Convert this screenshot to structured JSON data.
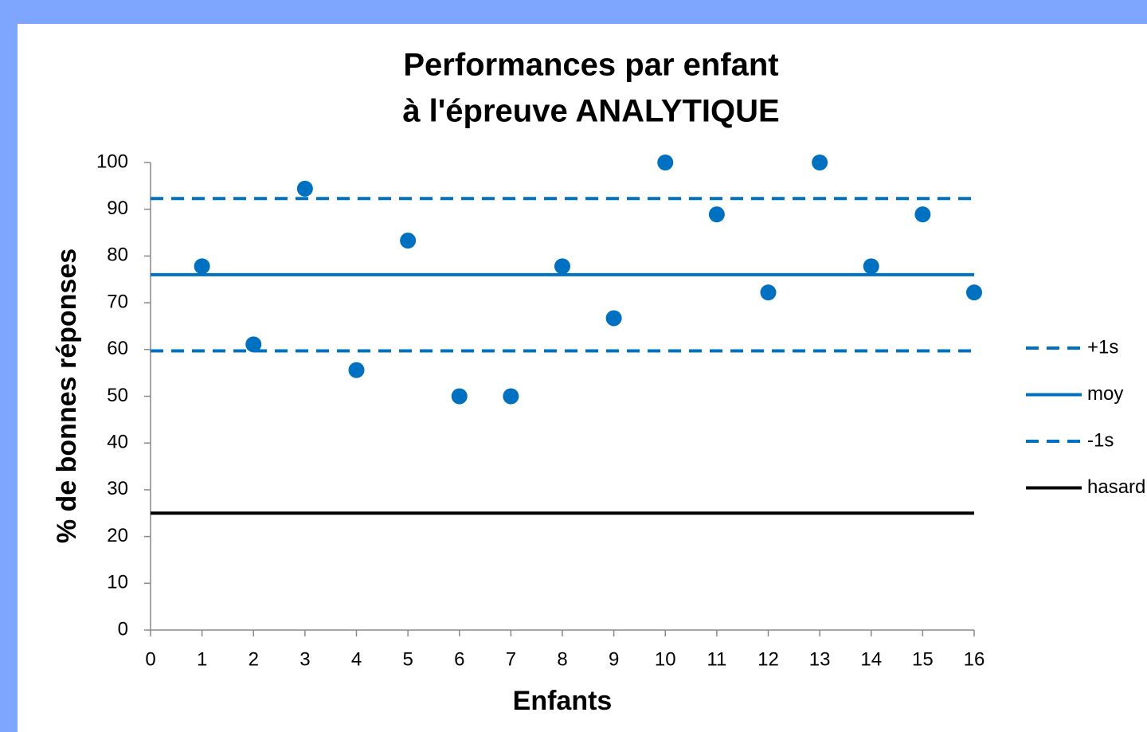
{
  "chart_data": {
    "type": "scatter",
    "title_lines": [
      "Performances par enfant",
      "à l'épreuve ANALYTIQUE"
    ],
    "x_label": "Enfants",
    "y_label": "% de bonnes réponses",
    "xlim": [
      0,
      16
    ],
    "xticks": [
      0,
      1,
      2,
      3,
      4,
      5,
      6,
      7,
      8,
      9,
      10,
      11,
      12,
      13,
      14,
      15,
      16
    ],
    "ylim": [
      0,
      100
    ],
    "yticks": [
      0,
      10,
      20,
      30,
      40,
      50,
      60,
      70,
      80,
      90,
      100
    ],
    "grid": false,
    "legend": "right",
    "series": [
      {
        "kind": "points",
        "color": "#0070c0",
        "x": [
          1,
          2,
          3,
          4,
          5,
          6,
          7,
          8,
          9,
          10,
          11,
          12,
          13,
          14,
          15,
          16
        ],
        "values": [
          77.8,
          61.1,
          94.4,
          55.6,
          83.3,
          50,
          50,
          77.8,
          66.7,
          100,
          88.9,
          72.2,
          100,
          77.8,
          88.9,
          72.2
        ]
      },
      {
        "kind": "line",
        "name": "+1s",
        "color": "#0070c0",
        "dashed": true,
        "x": [
          0,
          16
        ],
        "values": [
          92.3,
          92.3
        ]
      },
      {
        "kind": "line",
        "name": "moy",
        "color": "#0070c0",
        "dashed": false,
        "x": [
          0,
          16
        ],
        "values": [
          76.0,
          76.0
        ]
      },
      {
        "kind": "line",
        "name": "-1s",
        "color": "#0070c0",
        "dashed": true,
        "x": [
          0,
          16
        ],
        "values": [
          59.7,
          59.7
        ]
      },
      {
        "kind": "line",
        "name": "hasard",
        "color": "#000000",
        "dashed": false,
        "x": [
          0,
          16
        ],
        "values": [
          25,
          25
        ]
      }
    ]
  }
}
